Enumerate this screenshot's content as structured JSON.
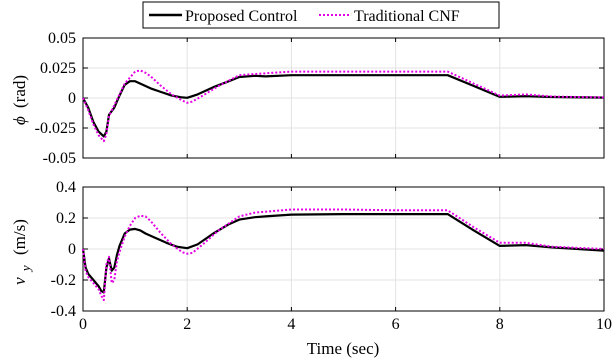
{
  "figure": {
    "xlabel": "Time (sec)",
    "legend": {
      "placement": "top-center",
      "entries": [
        {
          "label": "Proposed Control",
          "color": "#000000",
          "style": "solid"
        },
        {
          "label": "Traditional CNF",
          "color": "#e600e6",
          "style": "dotted"
        }
      ]
    }
  },
  "chart_data": [
    {
      "type": "line",
      "title": "",
      "xlabel": "",
      "ylabel": "ϕ (rad)",
      "ylabel_symbol": "ϕ",
      "ylabel_unit": "(rad)",
      "xlim": [
        0,
        10
      ],
      "ylim": [
        -0.05,
        0.05
      ],
      "grid": true,
      "xticks": [
        0,
        2,
        4,
        6,
        8,
        10
      ],
      "xticks_visible": false,
      "yticks": [
        0.05,
        0.025,
        0,
        -0.025,
        -0.05
      ],
      "ytick_labels": [
        "0.05",
        "0.025",
        "0",
        "-0.025",
        "-0.05"
      ],
      "series": [
        {
          "name": "Proposed Control",
          "color": "#000000",
          "x": [
            0,
            0.1,
            0.2,
            0.3,
            0.4,
            0.45,
            0.5,
            0.6,
            0.7,
            0.8,
            0.9,
            1.0,
            1.1,
            1.3,
            1.5,
            1.7,
            1.9,
            2.0,
            2.2,
            2.5,
            2.8,
            3.0,
            3.3,
            3.5,
            4.0,
            5.0,
            6.0,
            7.0,
            7.5,
            8.0,
            8.5,
            9.0,
            10.0
          ],
          "y": [
            0,
            -0.008,
            -0.02,
            -0.028,
            -0.032,
            -0.028,
            -0.014,
            -0.008,
            0.002,
            0.011,
            0.014,
            0.014,
            0.012,
            0.008,
            0.005,
            0.002,
            0.0005,
            0.0002,
            0.003,
            0.009,
            0.014,
            0.0175,
            0.0185,
            0.018,
            0.019,
            0.019,
            0.019,
            0.019,
            0.01,
            0.001,
            0.0015,
            0.0008,
            0.0003
          ]
        },
        {
          "name": "Traditional CNF",
          "color": "#e600e6",
          "x": [
            0,
            0.1,
            0.2,
            0.3,
            0.4,
            0.45,
            0.5,
            0.6,
            0.7,
            0.8,
            0.9,
            1.0,
            1.1,
            1.2,
            1.3,
            1.5,
            1.7,
            1.9,
            2.0,
            2.1,
            2.3,
            2.6,
            3.0,
            3.3,
            4.0,
            5.0,
            6.0,
            7.0,
            7.5,
            8.0,
            8.5,
            9.0,
            10.0
          ],
          "y": [
            0,
            -0.01,
            -0.022,
            -0.031,
            -0.036,
            -0.03,
            -0.015,
            -0.006,
            0.003,
            0.012,
            0.017,
            0.022,
            0.023,
            0.021,
            0.018,
            0.01,
            0.003,
            -0.002,
            -0.004,
            -0.003,
            0.002,
            0.01,
            0.019,
            0.02,
            0.022,
            0.022,
            0.022,
            0.022,
            0.012,
            0.002,
            0.003,
            0.0012,
            0.0005
          ]
        }
      ]
    },
    {
      "type": "line",
      "title": "",
      "xlabel": "Time (sec)",
      "ylabel": "v_y (m/s)",
      "ylabel_symbol": "v",
      "ylabel_subscript": "y",
      "ylabel_unit": "(m/s)",
      "xlim": [
        0,
        10
      ],
      "ylim": [
        -0.4,
        0.4
      ],
      "grid": true,
      "xticks": [
        0,
        2,
        4,
        6,
        8,
        10
      ],
      "xticks_visible": true,
      "yticks": [
        0.4,
        0.2,
        0,
        -0.2,
        -0.4
      ],
      "ytick_labels": [
        "0.4",
        "0.2",
        "0",
        "-0.2",
        "-0.4"
      ],
      "series": [
        {
          "name": "Proposed Control",
          "color": "#000000",
          "x": [
            0,
            0.05,
            0.1,
            0.2,
            0.3,
            0.35,
            0.4,
            0.45,
            0.5,
            0.55,
            0.6,
            0.65,
            0.7,
            0.8,
            0.9,
            1.0,
            1.1,
            1.2,
            1.4,
            1.6,
            1.8,
            2.0,
            2.2,
            2.5,
            2.8,
            3.0,
            3.3,
            3.5,
            4.0,
            5.0,
            6.0,
            7.0,
            7.5,
            8.0,
            8.5,
            9.0,
            10.0
          ],
          "y": [
            0,
            -0.12,
            -0.16,
            -0.2,
            -0.24,
            -0.27,
            -0.28,
            -0.12,
            -0.06,
            -0.14,
            -0.12,
            -0.04,
            0.02,
            0.1,
            0.125,
            0.13,
            0.12,
            0.1,
            0.07,
            0.04,
            0.015,
            0.005,
            0.03,
            0.1,
            0.16,
            0.19,
            0.205,
            0.21,
            0.222,
            0.225,
            0.225,
            0.225,
            0.12,
            0.02,
            0.025,
            0.01,
            -0.01
          ]
        },
        {
          "name": "Traditional CNF",
          "color": "#e600e6",
          "x": [
            0,
            0.05,
            0.1,
            0.2,
            0.3,
            0.35,
            0.4,
            0.45,
            0.5,
            0.55,
            0.6,
            0.65,
            0.7,
            0.8,
            0.9,
            1.0,
            1.1,
            1.2,
            1.3,
            1.5,
            1.7,
            1.9,
            2.0,
            2.1,
            2.3,
            2.6,
            3.0,
            3.3,
            4.0,
            5.0,
            6.0,
            7.0,
            7.5,
            8.0,
            8.5,
            9.0,
            10.0
          ],
          "y": [
            0,
            -0.14,
            -0.18,
            -0.22,
            -0.26,
            -0.3,
            -0.33,
            -0.1,
            -0.05,
            -0.22,
            -0.2,
            -0.08,
            -0.02,
            0.08,
            0.15,
            0.2,
            0.215,
            0.21,
            0.18,
            0.1,
            0.03,
            -0.02,
            -0.03,
            -0.025,
            0.03,
            0.12,
            0.21,
            0.235,
            0.255,
            0.255,
            0.25,
            0.25,
            0.14,
            0.04,
            0.04,
            0.015,
            0.0
          ]
        }
      ]
    }
  ]
}
